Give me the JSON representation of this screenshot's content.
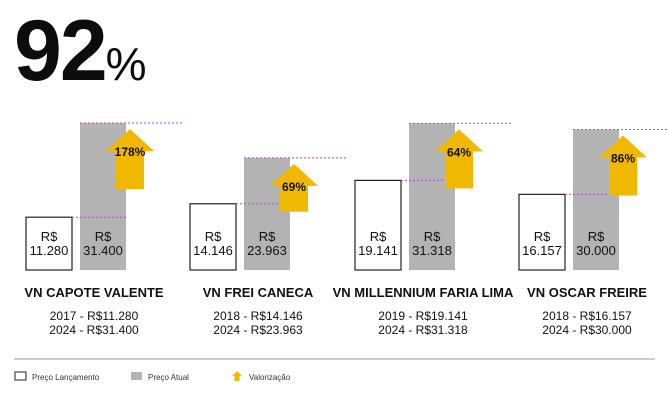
{
  "headline": {
    "value": "92",
    "unit": "%"
  },
  "colors": {
    "launch_fill": "#ffffff",
    "launch_stroke": "#222222",
    "current_fill": "#b3b3b3",
    "arrow_fill": "#f0b800",
    "guide_line": "#b14ad6",
    "text": "#111111"
  },
  "chart_data": {
    "type": "bar",
    "categories": [
      "VN CAPOTE VALENTE",
      "VN FREI CANECA",
      "VN MILLENNIUM FARIA LIMA",
      "VN OSCAR FREIRE"
    ],
    "series": [
      {
        "name": "Preço Lançamento",
        "values": [
          11.28,
          14.146,
          19.141,
          16.157
        ],
        "labels": [
          "R$\n11.280",
          "R$\n14.146",
          "R$\n19.141",
          "R$\n16.157"
        ]
      },
      {
        "name": "Preço Atual",
        "values": [
          31.4,
          23.963,
          31.318,
          30.0
        ],
        "labels": [
          "R$\n31.400",
          "R$\n23.963",
          "R$\n31.318",
          "R$\n30.000"
        ]
      }
    ],
    "valorization": [
      "178%",
      "69%",
      "64%",
      "86%"
    ],
    "year_lines": [
      [
        "2017 - R$11.280",
        "2024 - R$31.400"
      ],
      [
        "2018 - R$14.146",
        "2024 - R$23.963"
      ],
      [
        "2019 - R$19.141",
        "2024 - R$31.318"
      ],
      [
        "2018 - R$16.157",
        "2024 - R$30.000"
      ]
    ],
    "legend": {
      "placement": "bottom-left",
      "items": [
        {
          "label": "Preço Lançamento",
          "kind": "launch"
        },
        {
          "label": "Preço Atual",
          "kind": "current"
        },
        {
          "label": "Valorização",
          "kind": "arrow"
        }
      ]
    },
    "ylim": [
      0,
      31.4
    ],
    "grid": false
  }
}
